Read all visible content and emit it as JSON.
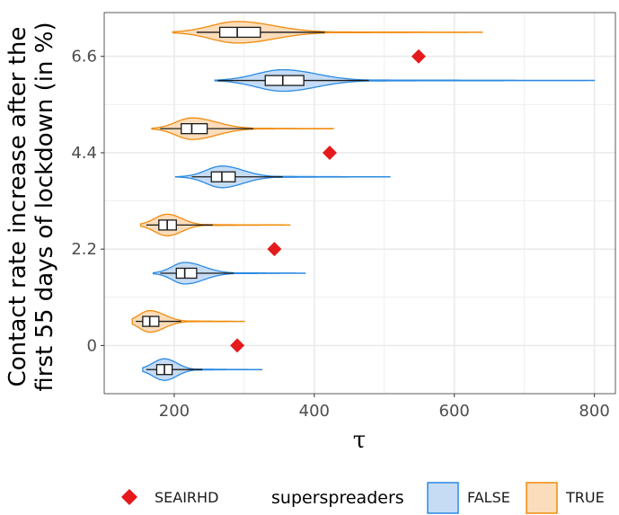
{
  "chart_data": {
    "type": "violin",
    "xlabel": "τ",
    "ylabel_lines": [
      "Contact rate increase after the",
      "first 55 days of lockdown (in %)"
    ],
    "xlim": [
      100,
      830
    ],
    "ylim": [
      -1.1,
      7.6
    ],
    "x_ticks": [
      200,
      400,
      600,
      800
    ],
    "x_tick_labels": [
      "200",
      "400",
      "600",
      "800"
    ],
    "y_ticks": [
      0,
      2.2,
      4.4,
      6.6
    ],
    "y_tick_labels": [
      "0",
      "2.2",
      "4.4",
      "6.6"
    ],
    "grid": true,
    "legend_position": "bottom",
    "legend": {
      "point_label": "SEAIRHD",
      "fill_title": "superspreaders",
      "fill_entries": [
        "FALSE",
        "TRUE"
      ]
    },
    "colors": {
      "seairhd": "#e41a1c",
      "false_fill": "#c6dcf5",
      "false_line": "#2b8ae3",
      "true_fill": "#fbdcbb",
      "true_line": "#f08c0d",
      "grid": "#ebebeb",
      "box_fill": "#ffffff",
      "box_line": "#1a1a1a"
    },
    "series": [
      {
        "superspreaders": "FALSE",
        "groups": [
          {
            "y": -0.55,
            "min": 155,
            "q1": 175,
            "median": 186,
            "q3": 197,
            "max": 325,
            "whisker_low": 160,
            "whisker_high": 240
          },
          {
            "y": 1.65,
            "min": 170,
            "q1": 203,
            "median": 215,
            "q3": 232,
            "max": 387,
            "whisker_low": 180,
            "whisker_high": 285
          },
          {
            "y": 3.85,
            "min": 202,
            "q1": 253,
            "median": 268,
            "q3": 287,
            "max": 508,
            "whisker_low": 225,
            "whisker_high": 355
          },
          {
            "y": 6.05,
            "min": 258,
            "q1": 330,
            "median": 355,
            "q3": 385,
            "max": 800,
            "whisker_low": 262,
            "whisker_high": 478
          }
        ]
      },
      {
        "superspreaders": "TRUE",
        "groups": [
          {
            "y": 0.55,
            "min": 140,
            "q1": 155,
            "median": 165,
            "q3": 178,
            "max": 300,
            "whisker_low": 145,
            "whisker_high": 210
          },
          {
            "y": 2.75,
            "min": 152,
            "q1": 178,
            "median": 190,
            "q3": 203,
            "max": 365,
            "whisker_low": 160,
            "whisker_high": 255
          },
          {
            "y": 4.95,
            "min": 168,
            "q1": 210,
            "median": 225,
            "q3": 247,
            "max": 427,
            "whisker_low": 180,
            "whisker_high": 313
          },
          {
            "y": 7.15,
            "min": 198,
            "q1": 265,
            "median": 290,
            "q3": 323,
            "max": 640,
            "whisker_low": 232,
            "whisker_high": 415
          }
        ]
      }
    ],
    "seairhd_points": [
      {
        "x": 290,
        "y": 0
      },
      {
        "x": 343,
        "y": 2.2
      },
      {
        "x": 422,
        "y": 4.4
      },
      {
        "x": 549,
        "y": 6.6
      }
    ]
  }
}
